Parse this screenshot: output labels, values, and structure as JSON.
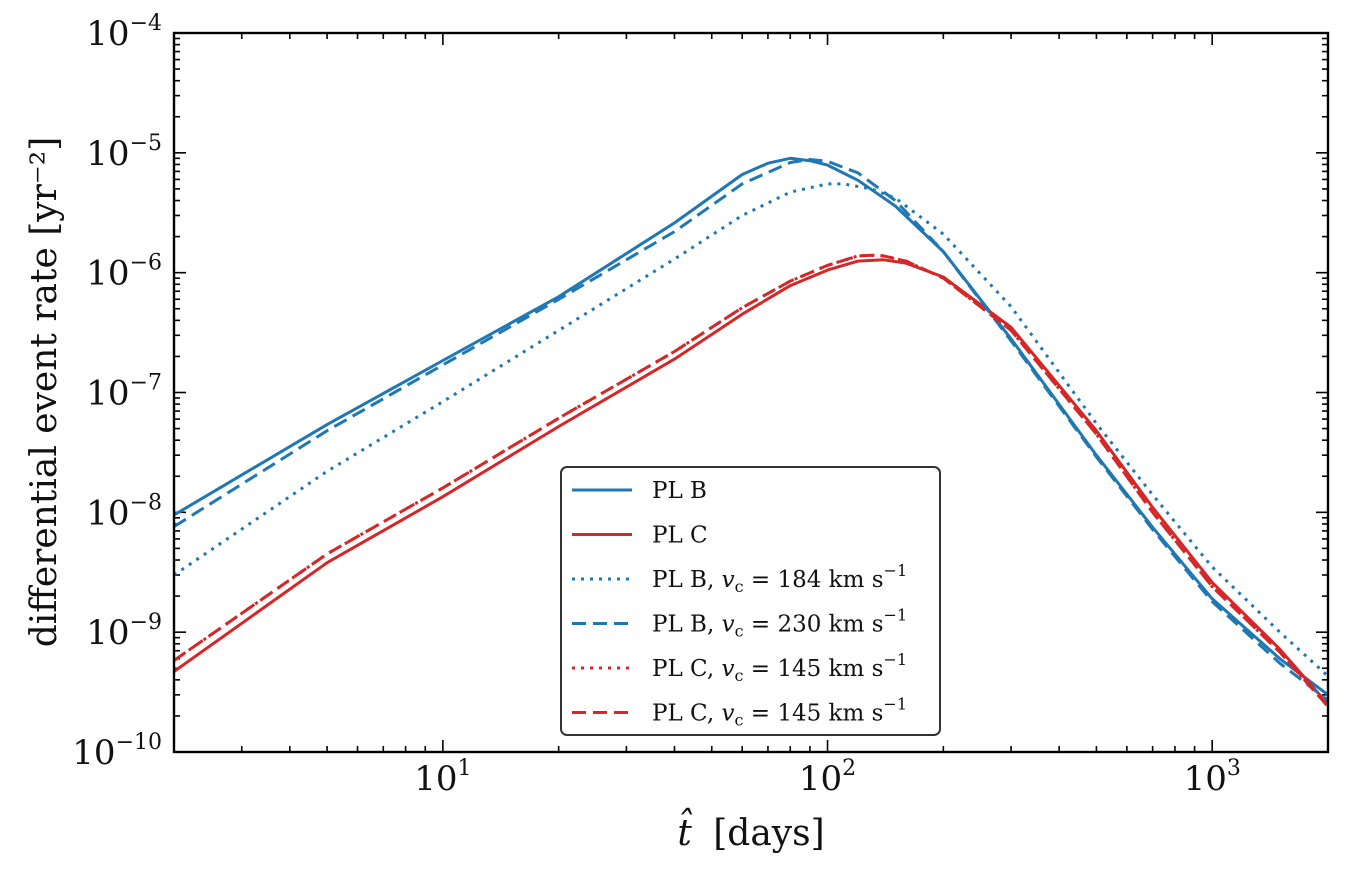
{
  "chart_data": {
    "type": "line",
    "xscale": "log",
    "yscale": "log",
    "xlim": [
      2,
      2000
    ],
    "ylim": [
      1e-10,
      0.0001
    ],
    "xlabel_symbol": "t̂",
    "xlabel_unit": "[days]",
    "ylabel": "differential event rate [yr⁻²]",
    "xticks": [
      {
        "base": "10",
        "exp": "1",
        "value": 10
      },
      {
        "base": "10",
        "exp": "2",
        "value": 100
      },
      {
        "base": "10",
        "exp": "3",
        "value": 1000
      }
    ],
    "yticks": [
      {
        "base": "10",
        "exp": "−4",
        "value": 0.0001
      },
      {
        "base": "10",
        "exp": "−5",
        "value": 1e-05
      },
      {
        "base": "10",
        "exp": "−6",
        "value": 1e-06
      },
      {
        "base": "10",
        "exp": "−7",
        "value": 1e-07
      },
      {
        "base": "10",
        "exp": "−8",
        "value": 1e-08
      },
      {
        "base": "10",
        "exp": "−9",
        "value": 1e-09
      },
      {
        "base": "10",
        "exp": "−10",
        "value": 1e-10
      }
    ],
    "legend_position": "lower-center",
    "series": [
      {
        "name": "PL B",
        "v_c": null,
        "color": "#1f77b4",
        "dash": "solid",
        "x": [
          2,
          5,
          10,
          20,
          40,
          60,
          70,
          80,
          90,
          100,
          120,
          150,
          200,
          300,
          500,
          700,
          1000,
          1500,
          2000
        ],
        "y": [
          9.5e-09,
          5.4e-08,
          1.85e-07,
          6.3e-07,
          2.6e-06,
          6.6e-06,
          8.2e-06,
          9e-06,
          8.6e-06,
          7.9e-06,
          5.9e-06,
          3.6e-06,
          1.5e-06,
          2.8e-07,
          3e-08,
          7.5e-09,
          1.9e-09,
          6e-10,
          3e-10
        ]
      },
      {
        "name": "PL C",
        "v_c": null,
        "color": "#d62728",
        "dash": "solid",
        "x": [
          2,
          5,
          10,
          20,
          40,
          60,
          80,
          100,
          120,
          140,
          160,
          200,
          300,
          500,
          700,
          1000,
          1500,
          2000
        ],
        "y": [
          4.7e-10,
          3.8e-09,
          1.35e-08,
          5.2e-08,
          1.9e-07,
          4.5e-07,
          7.8e-07,
          1.05e-06,
          1.25e-06,
          1.28e-06,
          1.2e-06,
          9.2e-07,
          3.5e-07,
          4.8e-08,
          1.1e-08,
          2.6e-09,
          7.2e-10,
          2.5e-10
        ]
      },
      {
        "name": "PL B",
        "v_c": "184",
        "color": "#1f77b4",
        "dash": "dotted",
        "x": [
          2,
          5,
          10,
          20,
          40,
          60,
          80,
          100,
          110,
          130,
          150,
          200,
          300,
          500,
          700,
          1000,
          1500,
          2000
        ],
        "y": [
          3e-09,
          2.2e-08,
          8.4e-08,
          3.3e-07,
          1.3e-06,
          3e-06,
          4.7e-06,
          5.5e-06,
          5.5e-06,
          5e-06,
          4.2e-06,
          2.1e-06,
          5.2e-07,
          5.5e-08,
          1.4e-08,
          3.5e-09,
          1e-09,
          4.3e-10
        ]
      },
      {
        "name": "PL B",
        "v_c": "230",
        "color": "#1f77b4",
        "dash": "dashed",
        "x": [
          2,
          5,
          10,
          20,
          40,
          60,
          80,
          90,
          100,
          120,
          150,
          200,
          300,
          500,
          700,
          1000,
          1500,
          2000
        ],
        "y": [
          7.6e-09,
          4.8e-08,
          1.7e-07,
          6e-07,
          2.2e-06,
          5.5e-06,
          8.3e-06,
          8.8e-06,
          8.5e-06,
          6.8e-06,
          4e-06,
          1.5e-06,
          2.7e-07,
          2.9e-08,
          7.2e-09,
          1.8e-09,
          5.5e-10,
          2.7e-10
        ]
      },
      {
        "name": "PL C",
        "v_c": "145",
        "color": "#d62728",
        "dash": "dotted",
        "x": [
          2,
          5,
          10,
          20,
          40,
          60,
          80,
          100,
          120,
          130,
          140,
          160,
          200,
          300,
          500,
          700,
          1000,
          1500,
          2000
        ],
        "y": [
          5.8e-10,
          4.5e-09,
          1.6e-08,
          6.1e-08,
          2.2e-07,
          5.1e-07,
          8.5e-07,
          1.15e-06,
          1.38e-06,
          1.4e-06,
          1.38e-06,
          1.25e-06,
          9e-07,
          3.3e-07,
          4.5e-08,
          1e-08,
          2.4e-09,
          6.8e-10,
          2.4e-10
        ]
      },
      {
        "name": "PL C",
        "v_c": "145",
        "color": "#d62728",
        "dash": "dashed",
        "x": [
          2,
          5,
          10,
          20,
          40,
          60,
          80,
          100,
          120,
          130,
          140,
          160,
          200,
          300,
          500,
          700,
          1000,
          1500,
          2000
        ],
        "y": [
          5.8e-10,
          4.5e-09,
          1.6e-08,
          6.1e-08,
          2.2e-07,
          5.1e-07,
          8.5e-07,
          1.15e-06,
          1.38e-06,
          1.4e-06,
          1.38e-06,
          1.25e-06,
          9e-07,
          3.3e-07,
          4.5e-08,
          1e-08,
          2.4e-09,
          6.8e-10,
          2.4e-10
        ]
      }
    ]
  }
}
